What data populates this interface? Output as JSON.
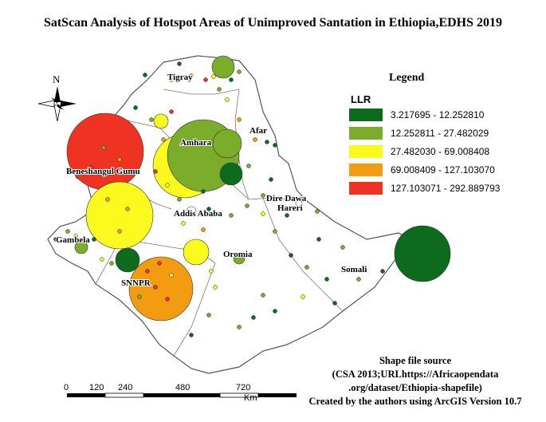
{
  "title": "SatScan Analysis of Hotspot Areas  of Unimproved Santation in Ethiopia,EDHS 2019",
  "north_arrow": {
    "label": "N"
  },
  "legend": {
    "title": "Legend",
    "subtitle": "LLR",
    "classes": [
      {
        "label": "3.217695 - 12.252810",
        "color": "#0d6b1e"
      },
      {
        "label": "12.252811 - 27.482029",
        "color": "#7cad2a"
      },
      {
        "label": "27.482030 - 69.008408",
        "color": "#fafa1e"
      },
      {
        "label": "69.008409 - 127.103070",
        "color": "#f39c12"
      },
      {
        "label": "127.103071 - 292.889793",
        "color": "#ee3322"
      }
    ]
  },
  "regions": [
    {
      "name": "Tigray"
    },
    {
      "name": "Afar"
    },
    {
      "name": "Amhara"
    },
    {
      "name": "Beneshangul Gumu"
    },
    {
      "name": "Dire Dawa"
    },
    {
      "name": "Hareri"
    },
    {
      "name": "Addis Ababa"
    },
    {
      "name": "Gambela"
    },
    {
      "name": "Oromia"
    },
    {
      "name": "SNNPR"
    },
    {
      "name": "Somali"
    }
  ],
  "scale_bar": {
    "ticks": [
      "0",
      "120",
      "240",
      "480",
      "720"
    ],
    "unit": "Km"
  },
  "source": {
    "line1": "Shape file source",
    "line2": "(CSA 2013;URLhttps://Africaopendata",
    "line3": ".org/dataset/Ethiopia-shapefile)",
    "line4": "Created by the authors using ArcGIS Version 10.7"
  }
}
